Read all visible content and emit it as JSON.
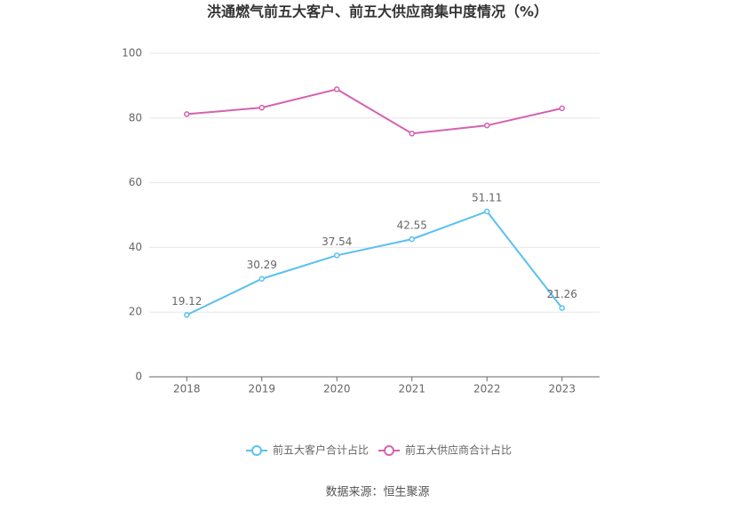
{
  "chart_data": {
    "type": "line",
    "title": "洪通燃气前五大客户、前五大供应商集中度情况（%）",
    "categories": [
      "2018",
      "2019",
      "2020",
      "2021",
      "2022",
      "2023"
    ],
    "series": [
      {
        "name": "前五大客户合计占比",
        "color": "#5bc0ef",
        "values": [
          19.12,
          30.29,
          37.54,
          42.55,
          51.11,
          21.26
        ],
        "show_labels": true
      },
      {
        "name": "前五大供应商合计占比",
        "color": "#d462b0",
        "values": [
          81.2,
          83.2,
          88.9,
          75.2,
          77.7,
          83.0
        ],
        "show_labels": false
      }
    ],
    "ylim": [
      0,
      100
    ],
    "yticks": [
      0,
      20,
      40,
      60,
      80,
      100
    ],
    "grid": true,
    "source": "数据来源：恒生聚源"
  }
}
